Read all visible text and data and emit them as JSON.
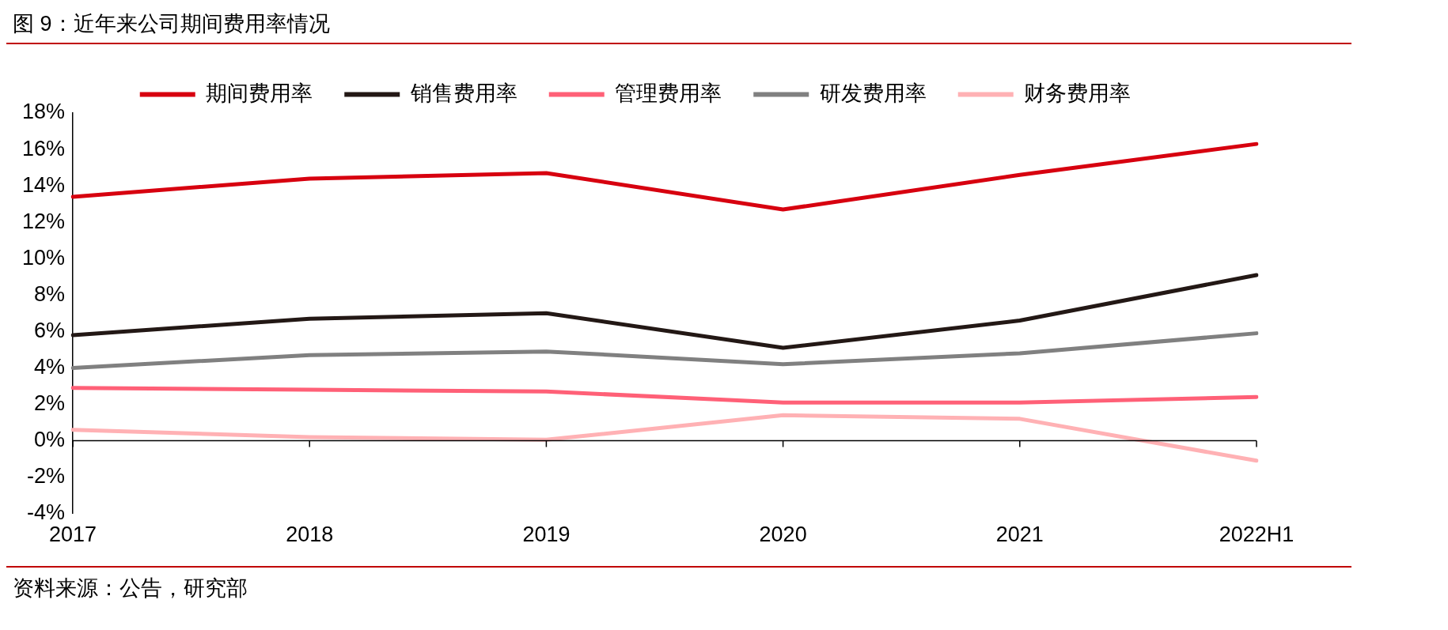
{
  "chart_data": {
    "type": "line",
    "title": "图 9：近年来公司期间费用率情况",
    "categories": [
      "2017",
      "2018",
      "2019",
      "2020",
      "2021",
      "2022H1"
    ],
    "series": [
      {
        "name": "期间费用率",
        "color": "#d7000f",
        "values": [
          13.4,
          14.4,
          14.7,
          12.7,
          14.6,
          16.3
        ]
      },
      {
        "name": "销售费用率",
        "color": "#231815",
        "values": [
          5.8,
          6.7,
          7.0,
          5.1,
          6.6,
          9.1
        ]
      },
      {
        "name": "管理费用率",
        "color": "#ff6077",
        "values": [
          2.9,
          2.8,
          2.7,
          2.1,
          2.1,
          2.4
        ]
      },
      {
        "name": "研发费用率",
        "color": "#808080",
        "values": [
          4.0,
          4.7,
          4.9,
          4.2,
          4.8,
          5.9
        ]
      },
      {
        "name": "财务费用率",
        "color": "#ffb1b4",
        "values": [
          0.6,
          0.2,
          0.05,
          1.4,
          1.2,
          -1.1
        ]
      }
    ],
    "ylim": [
      -4,
      18
    ],
    "yticks": [
      {
        "value": -4,
        "label": "-4%"
      },
      {
        "value": -2,
        "label": "-2%"
      },
      {
        "value": 0,
        "label": "0%"
      },
      {
        "value": 2,
        "label": "2%"
      },
      {
        "value": 4,
        "label": "4%"
      },
      {
        "value": 6,
        "label": "6%"
      },
      {
        "value": 8,
        "label": "8%"
      },
      {
        "value": 10,
        "label": "10%"
      },
      {
        "value": 12,
        "label": "12%"
      },
      {
        "value": 14,
        "label": "14%"
      },
      {
        "value": 16,
        "label": "16%"
      },
      {
        "value": 18,
        "label": "18%"
      }
    ],
    "legend": "top",
    "marker": "none",
    "line_style": "solid",
    "annotations": [
      "资料来源：公告，研究部"
    ]
  }
}
